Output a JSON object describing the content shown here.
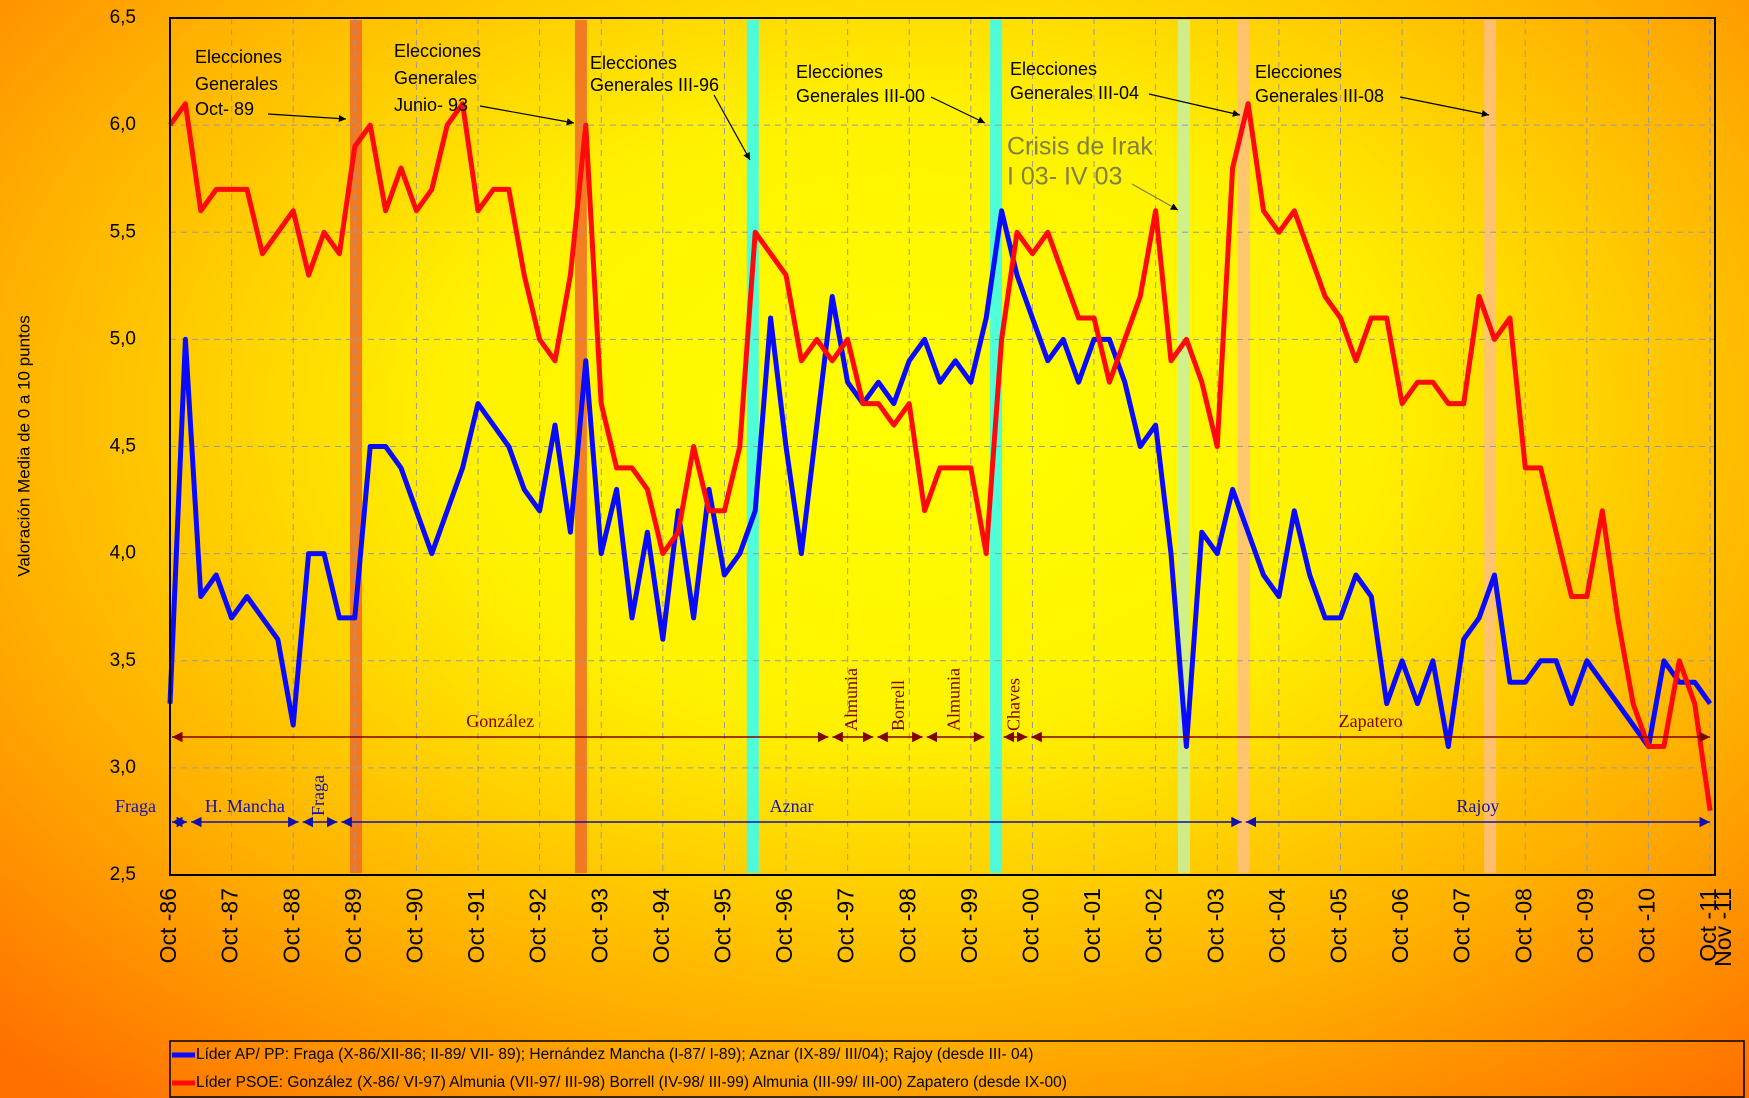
{
  "chart_data": {
    "type": "line",
    "y_label": "Valoración Media de 0 a 10 puntos",
    "xlim": [
      1986.75,
      2011.83
    ],
    "ylim": [
      2.5,
      6.5
    ],
    "yticks": [
      {
        "value": 2.5,
        "label": "2,5"
      },
      {
        "value": 3.0,
        "label": "3,0"
      },
      {
        "value": 3.5,
        "label": "3,5"
      },
      {
        "value": 4.0,
        "label": "4,0"
      },
      {
        "value": 4.5,
        "label": "4,5"
      },
      {
        "value": 5.0,
        "label": "5,0"
      },
      {
        "value": 5.5,
        "label": "5,5"
      },
      {
        "value": 6.0,
        "label": "6,0"
      },
      {
        "value": 6.5,
        "label": "6,5"
      }
    ],
    "xticks": [
      {
        "value": 1986.75,
        "label": "Oct -86"
      },
      {
        "value": 1987.75,
        "label": "Oct -87"
      },
      {
        "value": 1988.75,
        "label": "Oct -88"
      },
      {
        "value": 1989.75,
        "label": "Oct -89"
      },
      {
        "value": 1990.75,
        "label": "Oct -90"
      },
      {
        "value": 1991.75,
        "label": "Oct -91"
      },
      {
        "value": 1992.75,
        "label": "Oct -92"
      },
      {
        "value": 1993.75,
        "label": "Oct -93"
      },
      {
        "value": 1994.75,
        "label": "Oct -94"
      },
      {
        "value": 1995.75,
        "label": "Oct -95"
      },
      {
        "value": 1996.75,
        "label": "Oct -96"
      },
      {
        "value": 1997.75,
        "label": "Oct -97"
      },
      {
        "value": 1998.75,
        "label": "Oct -98"
      },
      {
        "value": 1999.75,
        "label": "Oct -99"
      },
      {
        "value": 2000.75,
        "label": "Oct -00"
      },
      {
        "value": 2001.75,
        "label": "Oct -01"
      },
      {
        "value": 2002.75,
        "label": "Oct -02"
      },
      {
        "value": 2003.75,
        "label": "Oct -03"
      },
      {
        "value": 2004.75,
        "label": "Oct -04"
      },
      {
        "value": 2005.75,
        "label": "Oct -05"
      },
      {
        "value": 2006.75,
        "label": "Oct -06"
      },
      {
        "value": 2007.75,
        "label": "Oct -07"
      },
      {
        "value": 2008.75,
        "label": "Oct -08"
      },
      {
        "value": 2009.75,
        "label": "Oct -09"
      },
      {
        "value": 2010.75,
        "label": "Oct -10"
      },
      {
        "value": 2011.75,
        "label": "Oct -11"
      },
      {
        "value": 2011.83,
        "label": "Nov -11"
      }
    ],
    "grid": true,
    "x": [
      1986.75,
      1987,
      1987.25,
      1987.5,
      1987.75,
      1988,
      1988.25,
      1988.5,
      1988.75,
      1989,
      1989.25,
      1989.5,
      1989.75,
      1990,
      1990.25,
      1990.5,
      1990.75,
      1991,
      1991.25,
      1991.5,
      1991.75,
      1992,
      1992.25,
      1992.5,
      1992.75,
      1993,
      1993.25,
      1993.5,
      1993.75,
      1994,
      1994.25,
      1994.5,
      1994.75,
      1995,
      1995.25,
      1995.5,
      1995.75,
      1996,
      1996.25,
      1996.5,
      1996.75,
      1997,
      1997.25,
      1997.5,
      1997.75,
      1998,
      1998.25,
      1998.5,
      1998.75,
      1999,
      1999.25,
      1999.5,
      1999.75,
      2000,
      2000.25,
      2000.5,
      2000.75,
      2001,
      2001.25,
      2001.5,
      2001.75,
      2002,
      2002.25,
      2002.5,
      2002.75,
      2003,
      2003.25,
      2003.5,
      2003.75,
      2004,
      2004.25,
      2004.5,
      2004.75,
      2005,
      2005.25,
      2005.5,
      2005.75,
      2006,
      2006.25,
      2006.5,
      2006.75,
      2007,
      2007.25,
      2007.5,
      2007.75,
      2008,
      2008.25,
      2008.5,
      2008.75,
      2009,
      2009.25,
      2009.5,
      2009.75,
      2010,
      2010.25,
      2010.5,
      2010.75,
      2011,
      2011.25,
      2011.5,
      2011.75
    ],
    "series": [
      {
        "name": "Líder AP/ PP: Fraga (X-86/XII-86; II-89/ VII- 89); Hernández Mancha (I-87/ I-89); Aznar (IX-89/ III/04); Rajoy (desde III- 04)",
        "color": "#0a0aff",
        "values": [
          3.3,
          5.0,
          3.8,
          3.9,
          3.7,
          3.8,
          3.7,
          3.6,
          3.2,
          4.0,
          4.0,
          3.7,
          3.7,
          4.5,
          4.5,
          4.4,
          4.2,
          4.0,
          4.2,
          4.4,
          4.7,
          4.6,
          4.5,
          4.3,
          4.2,
          4.6,
          4.1,
          4.9,
          4.0,
          4.3,
          3.7,
          4.1,
          3.6,
          4.2,
          3.7,
          4.3,
          3.9,
          4.0,
          4.2,
          5.1,
          4.5,
          4.0,
          4.6,
          5.2,
          4.8,
          4.7,
          4.8,
          4.7,
          4.9,
          5.0,
          4.8,
          4.9,
          4.8,
          5.1,
          5.6,
          5.3,
          5.1,
          4.9,
          5.0,
          4.8,
          5.0,
          5.0,
          4.8,
          4.5,
          4.6,
          4.0,
          3.1,
          4.1,
          4.0,
          4.3,
          4.1,
          3.9,
          3.8,
          4.2,
          3.9,
          3.7,
          3.7,
          3.9,
          3.8,
          3.3,
          3.5,
          3.3,
          3.5,
          3.1,
          3.6,
          3.7,
          3.9,
          3.4,
          3.4,
          3.5,
          3.5,
          3.3,
          3.5,
          3.4,
          3.3,
          3.2,
          3.1,
          3.5,
          3.4,
          3.4,
          3.3
        ]
      },
      {
        "name": "Líder PSOE: González (X-86/ VI-97) Almunia (VII-97/ III-98) Borrell (IV-98/ III-99)  Almunia (III-99/ III-00) Zapatero (desde IX-00)",
        "color": "#ff0a0a",
        "values": [
          6.0,
          6.1,
          5.6,
          5.7,
          5.7,
          5.7,
          5.4,
          5.5,
          5.6,
          5.3,
          5.5,
          5.4,
          5.9,
          6.0,
          5.6,
          5.8,
          5.6,
          5.7,
          6.0,
          6.1,
          5.6,
          5.7,
          5.7,
          5.3,
          5.0,
          4.9,
          5.3,
          6.0,
          4.7,
          4.4,
          4.4,
          4.3,
          4.0,
          4.1,
          4.5,
          4.2,
          4.2,
          4.5,
          5.5,
          5.4,
          5.3,
          4.9,
          5.0,
          4.9,
          5.0,
          4.7,
          4.7,
          4.6,
          4.7,
          4.2,
          4.4,
          4.4,
          4.4,
          4.0,
          5.0,
          5.5,
          5.4,
          5.5,
          5.3,
          5.1,
          5.1,
          4.8,
          5.0,
          5.2,
          5.6,
          4.9,
          5.0,
          4.8,
          4.5,
          5.8,
          6.1,
          5.6,
          5.5,
          5.6,
          5.4,
          5.2,
          5.1,
          4.9,
          5.1,
          5.1,
          4.7,
          4.8,
          4.8,
          4.7,
          4.7,
          5.2,
          5.0,
          5.1,
          4.4,
          4.4,
          4.1,
          3.8,
          3.8,
          4.2,
          3.7,
          3.3,
          3.1,
          3.1,
          3.5,
          3.3,
          2.8
        ]
      }
    ],
    "bands": [
      {
        "x": 1989.77,
        "color": "#f06a28"
      },
      {
        "x": 1993.42,
        "color": "#f06a28"
      },
      {
        "x": 1996.21,
        "color": "#30ffff"
      },
      {
        "x": 2000.16,
        "color": "#30ffff"
      },
      {
        "x": 2003.21,
        "color": "#c8f0a0"
      },
      {
        "x": 2004.18,
        "color": "#ffc080"
      },
      {
        "x": 2008.18,
        "color": "#ffc080"
      }
    ],
    "annotations": [
      {
        "lines": [
          "Elecciones",
          "Generales",
          "Oct- 89"
        ],
        "color": "#000000"
      },
      {
        "lines": [
          "Elecciones",
          "Generales",
          "Junio- 93"
        ],
        "color": "#000000"
      },
      {
        "lines": [
          "Elecciones",
          "Generales III-96"
        ],
        "color": "#000000"
      },
      {
        "lines": [
          "Elecciones",
          "Generales III-00"
        ],
        "color": "#000000"
      },
      {
        "lines": [
          "Elecciones",
          "Generales III-04"
        ],
        "color": "#000000"
      },
      {
        "lines": [
          "Elecciones",
          "Generales III-08"
        ],
        "color": "#000000"
      },
      {
        "lines": [
          "Crisis de Irak",
          "I 03- IV 03"
        ],
        "color": "#808040"
      }
    ],
    "leaders_psoe": {
      "color": "#800000",
      "periods": [
        {
          "name": "González",
          "start": 1986.75,
          "end": 1997.47
        },
        {
          "name": "Almunia",
          "start": 1997.47,
          "end": 1998.2
        },
        {
          "name": "Borrell",
          "start": 1998.2,
          "end": 1999.0
        },
        {
          "name": "Almunia",
          "start": 1999.0,
          "end": 2000.0
        },
        {
          "name": "Chaves",
          "start": 2000.25,
          "end": 2000.7
        },
        {
          "name": "Zapatero",
          "start": 2000.7,
          "end": 2011.78
        }
      ]
    },
    "leaders_pp": {
      "color": "#1010b0",
      "periods": [
        {
          "name": "Fraga",
          "start": 1986.75,
          "end": 1987.06
        },
        {
          "name": "H. Mancha",
          "start": 1987.06,
          "end": 1988.87
        },
        {
          "name": "Fraga",
          "start": 1988.87,
          "end": 1989.5
        },
        {
          "name": "Aznar",
          "start": 1989.5,
          "end": 2004.18
        },
        {
          "name": "Rajoy",
          "start": 2004.18,
          "end": 2011.78
        }
      ]
    }
  }
}
